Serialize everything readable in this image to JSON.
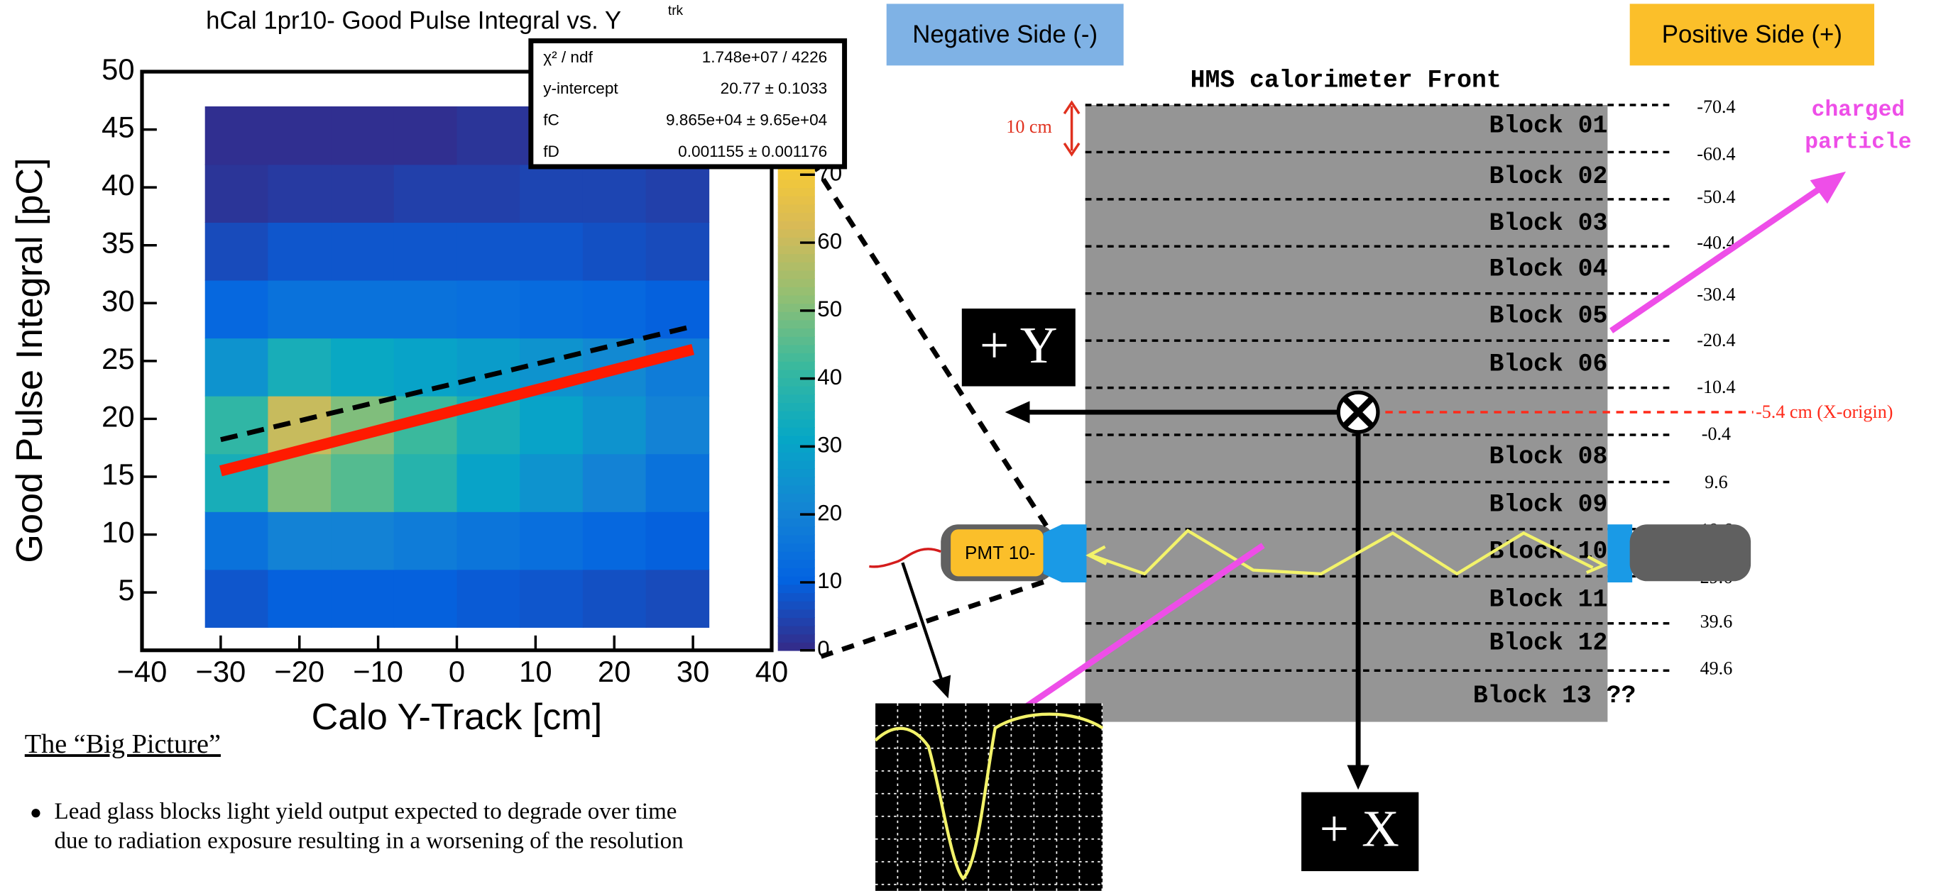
{
  "chart_data": {
    "type": "histogram2d",
    "title": "hCal 1pr10- Good Pulse Integral vs. Y",
    "title_subscript": "trk",
    "x_label": "Calo Y-Track [cm]",
    "y_label": "Good Pulse Integral [pC]",
    "xlim": [
      -40,
      40
    ],
    "ylim": [
      0,
      50
    ],
    "zlim": [
      0,
      73
    ],
    "xticks": [
      {
        "value": -40,
        "label": "−40"
      },
      {
        "value": -30,
        "label": "−30"
      },
      {
        "value": -20,
        "label": "−20"
      },
      {
        "value": -10,
        "label": "−10"
      },
      0,
      10,
      20,
      30,
      40
    ],
    "yticks": [
      5,
      10,
      15,
      20,
      25,
      30,
      35,
      40,
      45,
      50
    ],
    "zticks": [
      0,
      10,
      20,
      30,
      40,
      50,
      60,
      70
    ],
    "xbins": [
      -32,
      -24,
      -16,
      -8,
      0,
      8,
      16,
      24,
      32
    ],
    "ybins": [
      2,
      7,
      12,
      17,
      22,
      27,
      32,
      37,
      42,
      47
    ],
    "z": [
      [
        8,
        10,
        10,
        10,
        9,
        8,
        7,
        6
      ],
      [
        15,
        20,
        20,
        18,
        16,
        14,
        12,
        10
      ],
      [
        35,
        50,
        45,
        38,
        30,
        25,
        20,
        15
      ],
      [
        40,
        60,
        50,
        42,
        35,
        30,
        25,
        20
      ],
      [
        25,
        35,
        32,
        30,
        28,
        25,
        22,
        18
      ],
      [
        12,
        15,
        15,
        15,
        14,
        13,
        12,
        10
      ],
      [
        6,
        8,
        8,
        8,
        8,
        8,
        7,
        6
      ],
      [
        2,
        3,
        3,
        4,
        4,
        5,
        5,
        4
      ],
      [
        1,
        1,
        1,
        1,
        2,
        2,
        2,
        1
      ]
    ],
    "colormap": [
      "#352a87",
      "#0363e1",
      "#1485d4",
      "#06a7c6",
      "#38b99e",
      "#92bf73",
      "#d9ba56",
      "#fcce2e"
    ],
    "fit_lines": [
      {
        "color": "#ff1a00",
        "x": [
          -30,
          30
        ],
        "y": [
          15.5,
          26
        ]
      },
      {
        "color": "#000000",
        "dashed": true,
        "x": [
          -30,
          30
        ],
        "y": [
          18.2,
          28
        ]
      }
    ],
    "stats": [
      {
        "label": "χ² / ndf",
        "value": "1.748e+07 / 4226"
      },
      {
        "label": "y-intercept",
        "value": "20.77 ± 0.1033"
      },
      {
        "label": "fC",
        "value": "9.865e+04 ± 9.65e+04"
      },
      {
        "label": "fD",
        "value": "0.001155 ± 0.001176"
      }
    ]
  },
  "diagram": {
    "negative_side": "Negative Side (-)",
    "positive_side": "Positive Side (+)",
    "title": "HMS calorimeter Front",
    "block_height": "10 cm",
    "blocks": [
      "Block 01",
      "Block 02",
      "Block 03",
      "Block 04",
      "Block 05",
      "Block 06",
      "Block 08",
      "Block 09",
      "Block 10",
      "Block 11",
      "Block 12",
      "Block 13 ??"
    ],
    "boundaries": [
      "-70.4",
      "-60.4",
      "-50.4",
      "-40.4",
      "-30.4",
      "-20.4",
      "-10.4",
      "-0.4",
      "9.6",
      "19.6",
      "29.6",
      "39.6",
      "49.6"
    ],
    "x_origin": "-5.4 cm (X-origin)",
    "plus_y": "+ Y",
    "plus_x": "+ X",
    "pmt": "PMT 10-",
    "particle": [
      "charged",
      "particle"
    ]
  },
  "document": {
    "heading": "The “Big Picture”",
    "bullet": [
      "Lead glass blocks light yield output expected to degrade over time",
      "due to radiation exposure resulting in a worsening of the resolution"
    ]
  }
}
